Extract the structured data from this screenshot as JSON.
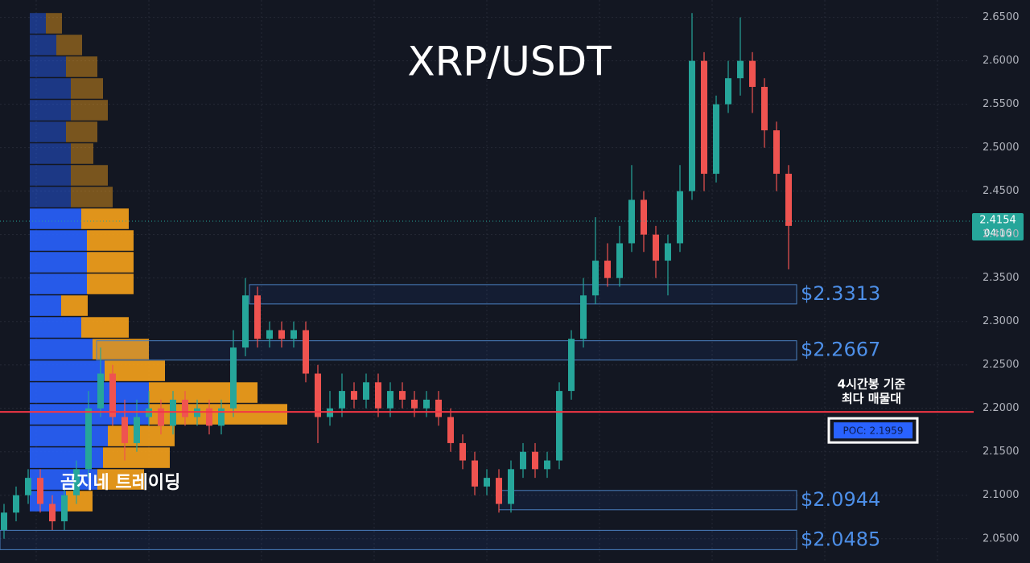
{
  "chart_data": {
    "type": "candlestick",
    "title": "XRP/USDT",
    "watermark": "곰지네 트레이딩",
    "ylim": [
      2.022,
      2.67
    ],
    "yticks": [
      {
        "value": 2.05,
        "label": "2.0500"
      },
      {
        "value": 2.1,
        "label": "2.1000"
      },
      {
        "value": 2.15,
        "label": "2.1500"
      },
      {
        "value": 2.2,
        "label": "2.2000"
      },
      {
        "value": 2.25,
        "label": "2.2500"
      },
      {
        "value": 2.3,
        "label": "2.3000"
      },
      {
        "value": 2.35,
        "label": "2.3500"
      },
      {
        "value": 2.4,
        "label": "2.4000"
      },
      {
        "value": 2.45,
        "label": "2.4500"
      },
      {
        "value": 2.5,
        "label": "2.5000"
      },
      {
        "value": 2.55,
        "label": "2.5500"
      },
      {
        "value": 2.6,
        "label": "2.6000"
      },
      {
        "value": 2.65,
        "label": "2.6500"
      }
    ],
    "grid": true,
    "up_color": "#26a69a",
    "down_color": "#ef5350",
    "open": [
      2.06,
      2.08,
      2.1,
      2.12,
      2.09,
      2.07,
      2.1,
      2.13,
      2.2,
      2.24,
      2.19,
      2.16,
      2.19,
      2.2,
      2.18,
      2.21,
      2.19,
      2.2,
      2.18,
      2.2,
      2.27,
      2.33,
      2.28,
      2.29,
      2.28,
      2.29,
      2.24,
      2.19,
      2.2,
      2.22,
      2.21,
      2.23,
      2.2,
      2.22,
      2.21,
      2.2,
      2.21,
      2.19,
      2.16,
      2.14,
      2.11,
      2.12,
      2.09,
      2.13,
      2.15,
      2.13,
      2.14,
      2.22,
      2.28,
      2.33,
      2.37,
      2.35,
      2.39,
      2.44,
      2.4,
      2.37,
      2.39,
      2.45,
      2.6,
      2.47,
      2.55,
      2.58,
      2.6,
      2.57,
      2.52,
      2.47
    ],
    "high": [
      2.09,
      2.11,
      2.13,
      2.13,
      2.1,
      2.11,
      2.14,
      2.22,
      2.27,
      2.25,
      2.21,
      2.21,
      2.22,
      2.21,
      2.22,
      2.22,
      2.21,
      2.21,
      2.21,
      2.29,
      2.35,
      2.34,
      2.3,
      2.3,
      2.3,
      2.3,
      2.25,
      2.22,
      2.24,
      2.23,
      2.24,
      2.24,
      2.23,
      2.23,
      2.22,
      2.22,
      2.22,
      2.2,
      2.17,
      2.15,
      2.13,
      2.13,
      2.14,
      2.16,
      2.16,
      2.15,
      2.23,
      2.29,
      2.35,
      2.42,
      2.39,
      2.41,
      2.48,
      2.45,
      2.41,
      2.4,
      2.48,
      2.655,
      2.61,
      2.56,
      2.6,
      2.65,
      2.61,
      2.58,
      2.53,
      2.48
    ],
    "low": [
      2.05,
      2.07,
      2.09,
      2.08,
      2.06,
      2.06,
      2.09,
      2.12,
      2.19,
      2.18,
      2.14,
      2.15,
      2.18,
      2.17,
      2.17,
      2.18,
      2.18,
      2.17,
      2.17,
      2.19,
      2.26,
      2.27,
      2.27,
      2.27,
      2.27,
      2.23,
      2.16,
      2.18,
      2.19,
      2.2,
      2.2,
      2.19,
      2.19,
      2.2,
      2.19,
      2.19,
      2.18,
      2.15,
      2.13,
      2.1,
      2.1,
      2.08,
      2.08,
      2.12,
      2.12,
      2.12,
      2.13,
      2.21,
      2.27,
      2.32,
      2.34,
      2.34,
      2.38,
      2.38,
      2.35,
      2.33,
      2.38,
      2.44,
      2.45,
      2.46,
      2.54,
      2.56,
      2.54,
      2.5,
      2.45,
      2.36
    ],
    "close": [
      2.08,
      2.1,
      2.12,
      2.09,
      2.07,
      2.1,
      2.13,
      2.2,
      2.24,
      2.19,
      2.16,
      2.19,
      2.2,
      2.18,
      2.21,
      2.19,
      2.2,
      2.18,
      2.2,
      2.27,
      2.33,
      2.28,
      2.29,
      2.28,
      2.29,
      2.24,
      2.19,
      2.2,
      2.22,
      2.21,
      2.23,
      2.2,
      2.22,
      2.21,
      2.2,
      2.21,
      2.19,
      2.16,
      2.14,
      2.11,
      2.12,
      2.09,
      2.13,
      2.15,
      2.13,
      2.14,
      2.22,
      2.28,
      2.33,
      2.37,
      2.35,
      2.39,
      2.44,
      2.4,
      2.37,
      2.39,
      2.45,
      2.6,
      2.47,
      2.55,
      2.58,
      2.6,
      2.57,
      2.52,
      2.47,
      2.41
    ],
    "volume_profile": {
      "bins": [
        2.655,
        2.63,
        2.605,
        2.58,
        2.555,
        2.53,
        2.505,
        2.48,
        2.455,
        2.43,
        2.405,
        2.38,
        2.355,
        2.33,
        2.305,
        2.28,
        2.255,
        2.23,
        2.205,
        2.18,
        2.155,
        2.13,
        2.105,
        2.08
      ],
      "buy": [
        20,
        33,
        45,
        51,
        51,
        45,
        51,
        51,
        51,
        64,
        71,
        71,
        71,
        39,
        64,
        78,
        93,
        148,
        148,
        97,
        91,
        84,
        45
      ],
      "sell": [
        20,
        32,
        39,
        40,
        46,
        39,
        28,
        46,
        52,
        59,
        58,
        58,
        58,
        33,
        59,
        70,
        75,
        135,
        172,
        83,
        83,
        58,
        33
      ],
      "buy_color": "#2962ff",
      "sell_color": "#f7a21b"
    },
    "levels": [
      {
        "value": 2.3313,
        "label": "$2.3313"
      },
      {
        "value": 2.2667,
        "label": "$2.2667"
      },
      {
        "value": 2.0944,
        "label": "$2.0944"
      },
      {
        "value": 2.0485,
        "label": "$2.0485"
      }
    ],
    "poc": {
      "value": 2.1959,
      "label": "POC: 2.1959",
      "annotation": [
        "4시간봉 기준",
        "최다 매물대"
      ],
      "color": "#f23645"
    },
    "last_price": {
      "value": 2.4154,
      "countdown": "04:16"
    }
  }
}
